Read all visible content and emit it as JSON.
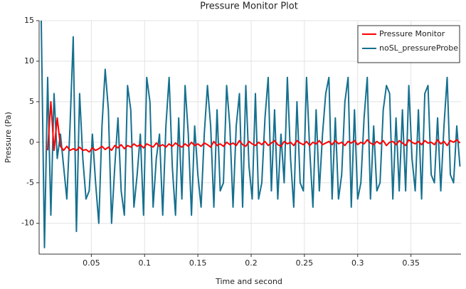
{
  "chart_data": {
    "type": "line",
    "title": "Pressure Monitor Plot",
    "x_label": "Time and second",
    "y_label": "Pressure (Pa)",
    "xlim": [
      0.001,
      0.397
    ],
    "ylim": [
      -13.8,
      15
    ],
    "xticks": [
      0.05,
      0.1,
      0.15,
      0.2,
      0.25,
      0.3,
      0.35
    ],
    "yticks": [
      -10,
      -5,
      0,
      5,
      10,
      15
    ],
    "grid": true,
    "legend": "upper right",
    "x": [
      0.003,
      0.006,
      0.009,
      0.012,
      0.015,
      0.018,
      0.021,
      0.024,
      0.027,
      0.03,
      0.033,
      0.036,
      0.039,
      0.042,
      0.045,
      0.048,
      0.051,
      0.054,
      0.057,
      0.06,
      0.063,
      0.066,
      0.069,
      0.072,
      0.075,
      0.078,
      0.081,
      0.084,
      0.087,
      0.09,
      0.093,
      0.096,
      0.099,
      0.102,
      0.105,
      0.108,
      0.111,
      0.114,
      0.117,
      0.12,
      0.123,
      0.126,
      0.129,
      0.132,
      0.135,
      0.138,
      0.141,
      0.144,
      0.147,
      0.15,
      0.153,
      0.156,
      0.159,
      0.162,
      0.165,
      0.168,
      0.171,
      0.174,
      0.177,
      0.18,
      0.183,
      0.186,
      0.189,
      0.192,
      0.195,
      0.198,
      0.201,
      0.204,
      0.207,
      0.21,
      0.213,
      0.216,
      0.219,
      0.222,
      0.225,
      0.228,
      0.231,
      0.234,
      0.237,
      0.24,
      0.243,
      0.246,
      0.249,
      0.252,
      0.255,
      0.258,
      0.261,
      0.264,
      0.267,
      0.27,
      0.273,
      0.276,
      0.279,
      0.282,
      0.285,
      0.288,
      0.291,
      0.294,
      0.297,
      0.3,
      0.303,
      0.306,
      0.309,
      0.312,
      0.315,
      0.318,
      0.321,
      0.324,
      0.327,
      0.33,
      0.333,
      0.336,
      0.339,
      0.342,
      0.345,
      0.348,
      0.351,
      0.354,
      0.357,
      0.36,
      0.363,
      0.366,
      0.369,
      0.372,
      0.375,
      0.378,
      0.381,
      0.384,
      0.387,
      0.39,
      0.393,
      0.396
    ],
    "series": [
      {
        "name": "noSL_pressureProbe",
        "color": "#16708f",
        "values": [
          15,
          -13,
          8,
          -9,
          6,
          -2,
          1,
          -3,
          -7,
          2,
          13,
          -11,
          6,
          -2,
          -7,
          -6,
          1,
          -5,
          -10,
          2,
          9,
          4,
          -10,
          -3,
          3,
          -6,
          -9,
          7,
          4,
          -8,
          -4,
          1,
          -9,
          8,
          5,
          -8,
          -2,
          1,
          -9,
          2,
          8,
          -3,
          -9,
          3,
          -7,
          7,
          1,
          -9,
          2,
          -4,
          -8,
          1,
          7,
          2,
          -8,
          4,
          -6,
          -5,
          7,
          2,
          -8,
          2,
          6,
          -8,
          7,
          -3,
          -7,
          6,
          -7,
          -5,
          3,
          8,
          -6,
          4,
          -7,
          1,
          -5,
          8,
          -2,
          -8,
          5,
          -5,
          -6,
          8,
          -1,
          -8,
          4,
          -6,
          1,
          6,
          8,
          -7,
          3,
          -7,
          -4,
          5,
          8,
          -8,
          4,
          -7,
          -5,
          3,
          8,
          -7,
          2,
          -6,
          -5,
          4,
          7,
          6,
          -7,
          3,
          -6,
          4,
          -6,
          7,
          -2,
          -6,
          4,
          -7,
          6,
          7,
          -4,
          -5,
          3,
          -6,
          2,
          8,
          -4,
          -5,
          2,
          -3
        ]
      },
      {
        "name": "Pressure Monitor",
        "color": "#ff0000",
        "values": [
          null,
          null,
          -1,
          5,
          -1,
          3,
          -0.5,
          -1,
          -0.5,
          -1,
          -0.8,
          -1,
          -0.6,
          -1,
          -0.9,
          -1.2,
          -0.7,
          -1,
          -0.8,
          -0.5,
          -0.9,
          -0.6,
          -1,
          -0.4,
          -0.7,
          -0.3,
          -0.8,
          -0.4,
          -0.6,
          -0.2,
          -0.5,
          -0.3,
          -0.7,
          -0.2,
          -0.4,
          -0.6,
          -0.1,
          -0.5,
          -0.3,
          -0.6,
          -0.2,
          -0.5,
          -0.1,
          -0.4,
          -0.6,
          -0.2,
          -0.5,
          0,
          -0.4,
          -0.2,
          -0.5,
          -0.1,
          -0.3,
          -0.6,
          0.1,
          -0.4,
          -0.2,
          -0.5,
          0,
          -0.3,
          -0.1,
          -0.4,
          0.2,
          -0.3,
          -0.5,
          0.1,
          -0.2,
          -0.4,
          0,
          -0.3,
          0.1,
          -0.4,
          -0.1,
          0.2,
          -0.3,
          -0.5,
          0.1,
          -0.2,
          0,
          -0.4,
          0.2,
          -0.1,
          -0.3,
          0.1,
          -0.4,
          0,
          -0.2,
          0.2,
          -0.3,
          -0.1,
          0.1,
          -0.3,
          0.2,
          -0.2,
          0,
          -0.4,
          0.1,
          -0.1,
          0.2,
          -0.3,
          0,
          -0.2,
          0.3,
          -0.1,
          -0.3,
          0.1,
          -0.2,
          0.2,
          -0.4,
          0,
          0.1,
          -0.3,
          0.2,
          -0.1,
          -0.4,
          0.3,
          0,
          -0.2,
          0.1,
          -0.3,
          0.2,
          -0.1,
          0,
          -0.3,
          0.3,
          -0.2,
          0.1,
          -0.4,
          0.2,
          0,
          0.3,
          -0.1
        ]
      }
    ]
  }
}
